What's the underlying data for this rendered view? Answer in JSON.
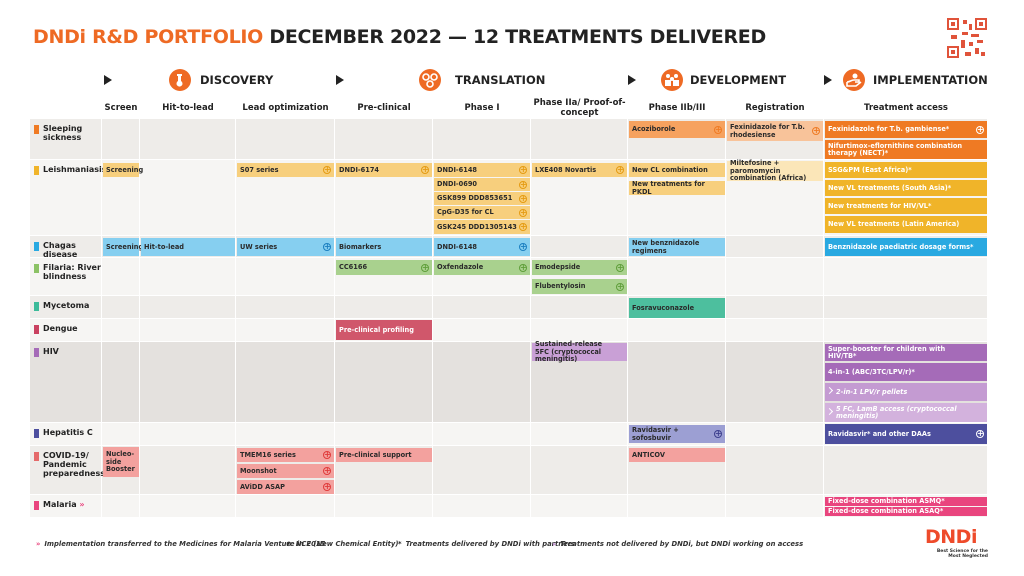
{
  "header": {
    "title_brand": "DNDi R&D PORTFOLIO",
    "title_rest": "DECEMBER 2022 — 12 TREATMENTS DELIVERED"
  },
  "stages": [
    "DISCOVERY",
    "TRANSLATION",
    "DEVELOPMENT",
    "IMPLEMENTATION"
  ],
  "columns": [
    "Screen",
    "Hit-to-lead",
    "Lead optimization",
    "Pre-clinical",
    "Phase I",
    "Phase IIa/ Proof-of-concept",
    "Phase IIb/III",
    "Registration",
    "Treatment access"
  ],
  "diseases": [
    "Sleeping sickness",
    "Leishmaniasis",
    "Chagas disease",
    "Filaria: River blindness",
    "Mycetoma",
    "Dengue",
    "HIV",
    "Hepatitis C",
    "COVID-19/ Pandemic preparedness",
    "Malaria"
  ],
  "projects": [
    "Acoziborole",
    "Fexinidazole for T.b. rhodesiense",
    "Fexinidazole for T.b. gambiense*",
    "Nifurtimox-eflornithine combination therapy (NECT)*",
    "Screening",
    "S07 series",
    "DNDI-6174",
    "DNDI-6148",
    "DNDI-0690",
    "GSK899 DDD853651",
    "CpG-D35 for CL",
    "GSK245 DDD1305143",
    "LXE408 Novartis",
    "New CL combination",
    "New treatments for PKDL",
    "Miltefosine + paromomycin combination (Africa)",
    "SSG&PM (East Africa)*",
    "New VL treatments (South Asia)*",
    "New treatments for HIV/VL*",
    "New VL treatments (Latin America)",
    "Screening",
    "Hit-to-lead",
    "UW series",
    "Biomarkers",
    "DNDI-6148",
    "New benznidazole regimens",
    "Benznidazole paediatric dosage forms*",
    "CC6166",
    "Oxfendazole",
    "Emodepside",
    "Flubentylosin",
    "Fosravuconazole",
    "Pre-clinical profiling",
    "Sustained-release 5FC (cryptococcal meningitis)",
    "Super-booster for children with HIV/TB*",
    "4-in-1 (ABC/3TC/LPV/r)*",
    "2-in-1 LPV/r pellets",
    "5 FC, LamB access (cryptococcal meningitis)",
    "Ravidasvir + sofosbuvir",
    "Ravidasvir* and other DAAs",
    "Nucleo-side Booster",
    "TMEM16 series",
    "Moonshot",
    "AViDD ASAP",
    "Pre-clinical support",
    "ANTICOV",
    "Fixed-dose combination ASMQ*",
    "Fixed-dose combination ASAQ*"
  ],
  "legend": [
    "Implementation transferred to the Medicines for Malaria Venture in 2015",
    "NCE (New Chemical Entity)",
    "Treatments delivered by DNDi with partners",
    "Treatments not delivered by DNDi, but DNDi working on access"
  ],
  "logo": {
    "name": "DNDi",
    "tagline": "Best Science for the Most Neglected"
  }
}
